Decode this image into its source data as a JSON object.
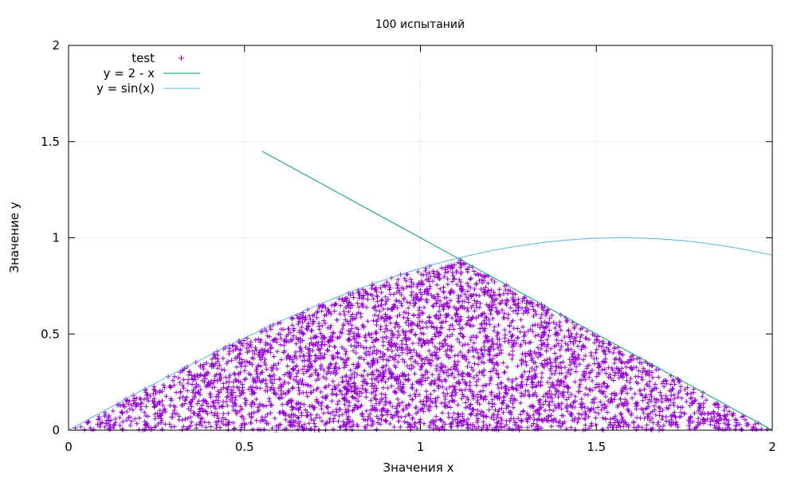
{
  "chart_data": {
    "type": "scatter",
    "title": "100 испытаний",
    "xlabel": "Значения x",
    "ylabel": "Значение y",
    "xlim": [
      0,
      2
    ],
    "ylim": [
      0,
      2
    ],
    "x_ticks": [
      0,
      0.5,
      1,
      1.5,
      2
    ],
    "x_tick_labels": [
      "0",
      "0.5",
      "1",
      "1.5",
      "2"
    ],
    "y_ticks": [
      0,
      0.5,
      1,
      1.5,
      2
    ],
    "y_tick_labels": [
      "0",
      "0.5",
      "1",
      "1.5",
      "2"
    ],
    "grid": true,
    "legend_position": "top-left",
    "series": [
      {
        "name": "test",
        "kind": "scatter",
        "marker": "plus",
        "color": "#9400d3",
        "region": "0 ≤ y ≤ min(sin(x), 2 - x), 0 ≤ x ≤ 2",
        "density": "dense, approximately uniform"
      },
      {
        "name": "y = 2 - x",
        "kind": "line",
        "color": "#009e73",
        "x": [
          0.55,
          2
        ],
        "y": [
          1.45,
          0
        ]
      },
      {
        "name": "y = sin(x)",
        "kind": "line",
        "color": "#56b4e9",
        "x": [
          0,
          0.25,
          0.5,
          0.75,
          1,
          1.25,
          1.5,
          1.5708,
          1.75,
          2
        ],
        "y": [
          0,
          0.247,
          0.479,
          0.682,
          0.841,
          0.949,
          0.997,
          1,
          0.984,
          0.909
        ]
      }
    ]
  }
}
